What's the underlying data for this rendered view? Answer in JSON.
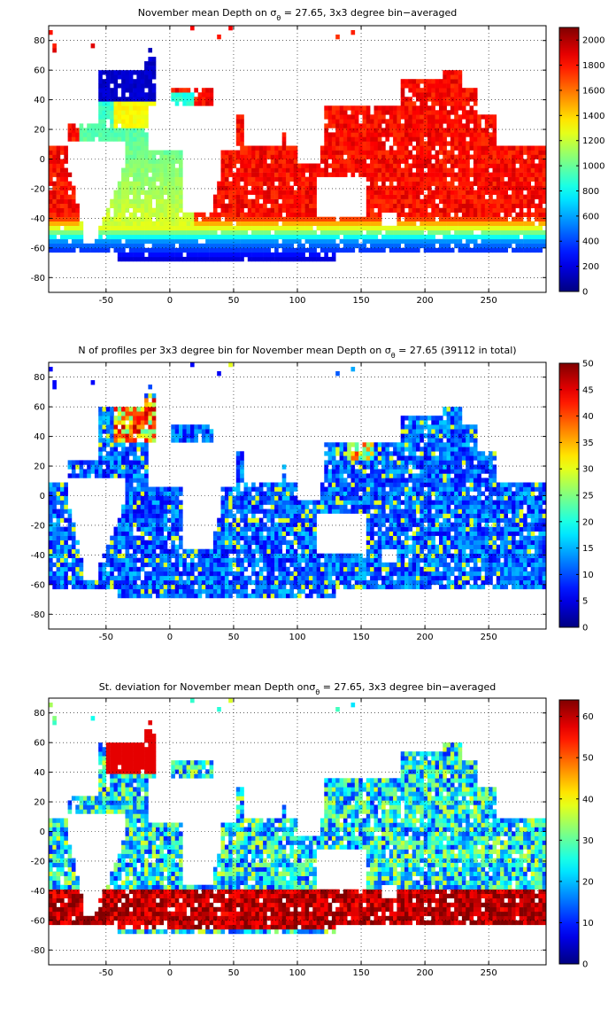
{
  "figure": {
    "panels": [
      {
        "title": "November mean Depth on σθ = 27.65, 3x3 degree bin−averaged",
        "title_parts": [
          "November mean Depth on ",
          "σ",
          "θ",
          " = 27.65, 3x3 degree bin−averaged"
        ]
      },
      {
        "title": "N of profiles per 3x3 degree bin for November mean Depth on σθ = 27.65 (39112 in total)",
        "title_parts": [
          "N of profiles per 3x3 degree bin for November mean Depth on ",
          "σ",
          "θ",
          " = 27.65 (39112 in total)"
        ]
      },
      {
        "title": "St. deviation for November mean Depth onσθ = 27.65, 3x3 degree bin−averaged",
        "title_parts": [
          "St. deviation for November mean Depth on",
          "σ",
          "θ",
          " = 27.65, 3x3 degree bin−averaged"
        ]
      }
    ]
  },
  "chart_data": [
    {
      "type": "heatmap",
      "title": "November mean Depth on σθ = 27.65, 3x3 degree bin−averaged",
      "xlabel": "",
      "ylabel": "",
      "xlim": [
        -95,
        295
      ],
      "ylim": [
        -90,
        90
      ],
      "xticks": [
        -50,
        0,
        50,
        100,
        150,
        200,
        250
      ],
      "yticks": [
        80,
        60,
        40,
        20,
        0,
        -20,
        -40,
        -60,
        -80
      ],
      "colorbar": {
        "min": 0,
        "max": 2100,
        "ticks": [
          0,
          200,
          400,
          600,
          800,
          1000,
          1200,
          1400,
          1600,
          1800,
          2000
        ],
        "colormap": "jet"
      },
      "grid": true,
      "field": "depth_mean",
      "summary": "Depth ~1800-2000 m over the Pacific and Indian basins, ~1100-1500 m in the South Atlantic, shoaling to < 400 m south of 55S; near 0 in the far North Atlantic/Labrador region."
    },
    {
      "type": "heatmap",
      "title": "N of profiles per 3x3 degree bin for November mean Depth on σθ = 27.65 (39112 in total)",
      "xlabel": "",
      "ylabel": "",
      "xlim": [
        -95,
        295
      ],
      "ylim": [
        -90,
        90
      ],
      "xticks": [
        -50,
        0,
        50,
        100,
        150,
        200,
        250
      ],
      "yticks": [
        80,
        60,
        40,
        20,
        0,
        -20,
        -40,
        -60,
        -80
      ],
      "colorbar": {
        "min": 0,
        "max": 50,
        "ticks": [
          0,
          5,
          10,
          15,
          20,
          25,
          30,
          35,
          40,
          45,
          50
        ],
        "colormap": "jet"
      },
      "grid": true,
      "field": "profile_count",
      "summary": "Mostly 2-15 profiles per bin; maxima (30-50) in the North Atlantic near 50-60N and Kuroshio region."
    },
    {
      "type": "heatmap",
      "title": "St. deviation for November mean Depth onσθ = 27.65, 3x3 degree bin−averaged",
      "xlabel": "",
      "ylabel": "",
      "xlim": [
        -95,
        295
      ],
      "ylim": [
        -90,
        90
      ],
      "xticks": [
        -50,
        0,
        50,
        100,
        150,
        200,
        250
      ],
      "yticks": [
        80,
        60,
        40,
        20,
        0,
        -20,
        -40,
        -60,
        -80
      ],
      "colorbar": {
        "min": 0,
        "max": 64,
        "ticks": [
          0,
          10,
          20,
          30,
          40,
          50,
          60
        ],
        "colormap": "jet"
      },
      "grid": true,
      "field": "depth_std",
      "summary": "Saturated (>60) in the Southern Ocean band 40-65S and North Atlantic; 10-40 elsewhere."
    }
  ]
}
